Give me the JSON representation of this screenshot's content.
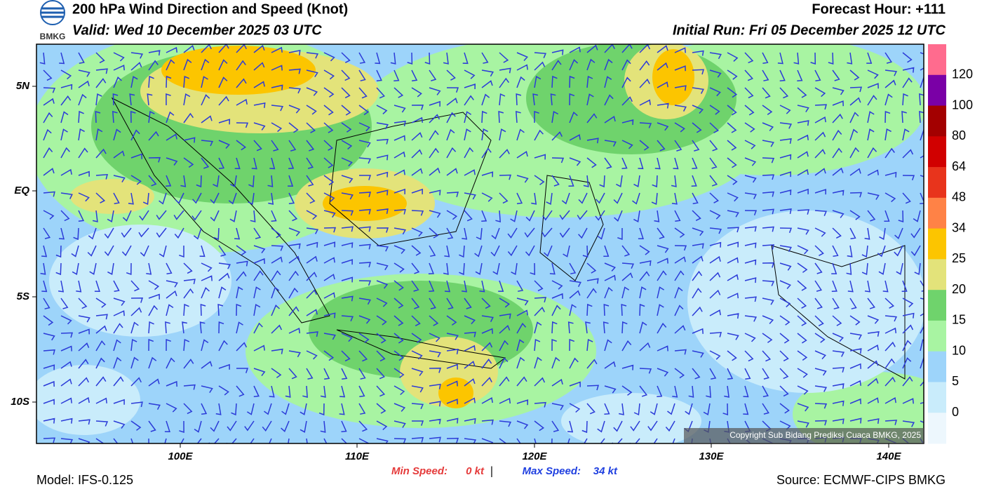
{
  "header": {
    "logo_text": "BMKG",
    "title": "200 hPa Wind Direction and Speed (Knot)",
    "valid": "Valid: Wed 10 December 2025 03 UTC",
    "forecast_hour": "Forecast Hour: +111",
    "initial_run": "Initial Run: Fri 05 December 2025 12 UTC"
  },
  "map": {
    "lat_labels": [
      "5N",
      "EQ",
      "5S",
      "10S"
    ],
    "lon_labels": [
      "100E",
      "110E",
      "120E",
      "130E",
      "140E"
    ],
    "copyright": "Copyright Sub Bidang Prediksi Cuaca BMKG, 2025"
  },
  "colorbar": {
    "labels": [
      "120",
      "100",
      "80",
      "64",
      "48",
      "34",
      "25",
      "20",
      "15",
      "10",
      "5",
      "0"
    ],
    "colors": [
      "#ff6b8e",
      "#7a00a6",
      "#a30000",
      "#d10000",
      "#e8341c",
      "#ff8246",
      "#fcc500",
      "#e3e37a",
      "#6fd36c",
      "#a8f4a2",
      "#9dd4fa",
      "#c9ecfb",
      "#edf7fd"
    ]
  },
  "footer": {
    "model": "Model: IFS-0.125",
    "min_speed_label": "Min Speed:",
    "min_speed": "0 kt",
    "separator": "|",
    "max_speed_label": "Max Speed:",
    "max_speed": "34 kt",
    "source": "Source: ECMWF-CIPS BMKG"
  }
}
